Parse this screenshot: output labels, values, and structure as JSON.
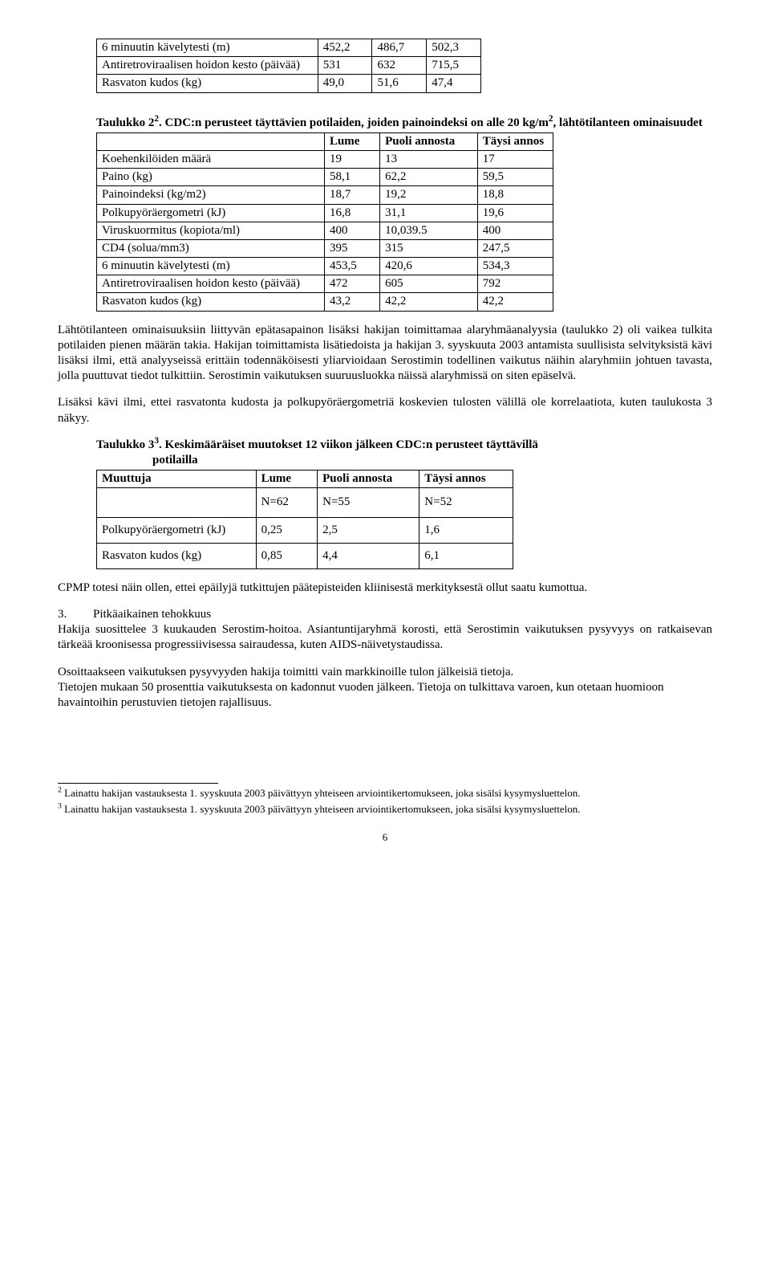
{
  "table1": {
    "rows": [
      [
        "6 minuutin kävelytesti (m)",
        "452,2",
        "486,7",
        "502,3"
      ],
      [
        "Antiretroviraalisen hoidon kesto (päivää)",
        "531",
        "632",
        "715,5"
      ],
      [
        "Rasvaton kudos (kg)",
        "49,0",
        "51,6",
        "47,4"
      ]
    ]
  },
  "table2": {
    "caption_prefix": "Taulukko 2",
    "caption_sup": "2",
    "caption_rest": ". CDC:n perusteet täyttävien potilaiden, joiden painoindeksi on alle 20 kg/m",
    "caption_sup2": "2",
    "caption_tail": ", lähtötilanteen ominaisuudet",
    "header": [
      "",
      "Lume",
      "Puoli annosta",
      "Täysi annos"
    ],
    "rows": [
      [
        "Koehenkilöiden määrä",
        "19",
        "13",
        "17"
      ],
      [
        "Paino (kg)",
        "58,1",
        "62,2",
        "59,5"
      ],
      [
        "Painoindeksi (kg/m2)",
        "18,7",
        "19,2",
        "18,8"
      ],
      [
        "Polkupyöräergometri (kJ)",
        "16,8",
        "31,1",
        "19,6"
      ],
      [
        "Viruskuormitus (kopiota/ml)",
        "400",
        "10,039.5",
        "400"
      ],
      [
        "CD4 (solua/mm3)",
        "395",
        "315",
        "247,5"
      ],
      [
        "6 minuutin kävelytesti (m)",
        "453,5",
        "420,6",
        "534,3"
      ],
      [
        "Antiretroviraalisen hoidon kesto (päivää)",
        "472",
        "605",
        "792"
      ],
      [
        "Rasvaton kudos (kg)",
        "43,2",
        "42,2",
        "42,2"
      ]
    ]
  },
  "para1": "Lähtötilanteen ominaisuuksiin liittyvän epätasapainon lisäksi hakijan toimittamaa alaryhmäanalyysia (taulukko 2) oli vaikea tulkita potilaiden pienen määrän takia. Hakijan toimittamista lisätiedoista ja hakijan 3. syyskuuta 2003 antamista suullisista selvityksistä kävi lisäksi ilmi, että analyyseissä erittäin todennäköisesti yliarvioidaan Serostimin todellinen vaikutus näihin alaryhmiin johtuen tavasta, jolla puuttuvat tiedot tulkittiin. Serostimin vaikutuksen suuruusluokka näissä alaryhmissä on siten epäselvä.",
  "para2": "Lisäksi kävi ilmi, ettei rasvatonta kudosta ja polkupyöräergometriä koskevien tulosten välillä ole korrelaatiota, kuten taulukosta 3 näkyy.",
  "table3": {
    "caption_prefix": "Taulukko 3",
    "caption_sup": "3",
    "caption_mid": ". Keskimääräiset muutokset 12 viikon jälkeen CDC:n perusteet täyttävillä",
    "caption_line2": "potilailla",
    "header": [
      "Muuttuja",
      "Lume",
      "Puoli annosta",
      "Täysi annos"
    ],
    "nrow": [
      "",
      "N=62",
      "N=55",
      "N=52"
    ],
    "rows": [
      [
        "Polkupyöräergometri (kJ)",
        "0,25",
        "2,5",
        "1,6"
      ],
      [
        "Rasvaton kudos (kg)",
        "0,85",
        "4,4",
        "6,1"
      ]
    ]
  },
  "para3": "CPMP totesi näin ollen, ettei epäilyjä tutkittujen päätepisteiden kliinisestä merkityksestä ollut saatu kumottua.",
  "section3": {
    "num": "3.",
    "title": "Pitkäaikainen tehokkuus"
  },
  "para4": "Hakija suosittelee 3 kuukauden Serostim-hoitoa. Asiantuntijaryhmä korosti, että Serostimin vaikutuksen pysyvyys on ratkaisevan tärkeää kroonisessa progressiivisessa sairaudessa, kuten AIDS-näivetystaudissa.",
  "para5a": "Osoittaakseen vaikutuksen pysyvyyden hakija toimitti vain markkinoille tulon jälkeisiä tietoja.",
  "para5b": "Tietojen mukaan 50 prosenttia vaikutuksesta on kadonnut vuoden jälkeen. Tietoja on tulkittava varoen, kun otetaan huomioon havaintoihin perustuvien tietojen rajallisuus.",
  "footnote2": {
    "sup": "2",
    "text": " Lainattu hakijan vastauksesta 1. syyskuuta 2003 päivättyyn yhteiseen arviointikertomukseen, joka sisälsi kysymysluettelon."
  },
  "footnote3": {
    "sup": "3",
    "text": " Lainattu hakijan vastauksesta 1. syyskuuta 2003 päivättyyn yhteiseen arviointikertomukseen, joka sisälsi kysymysluettelon."
  },
  "page_number": "6"
}
